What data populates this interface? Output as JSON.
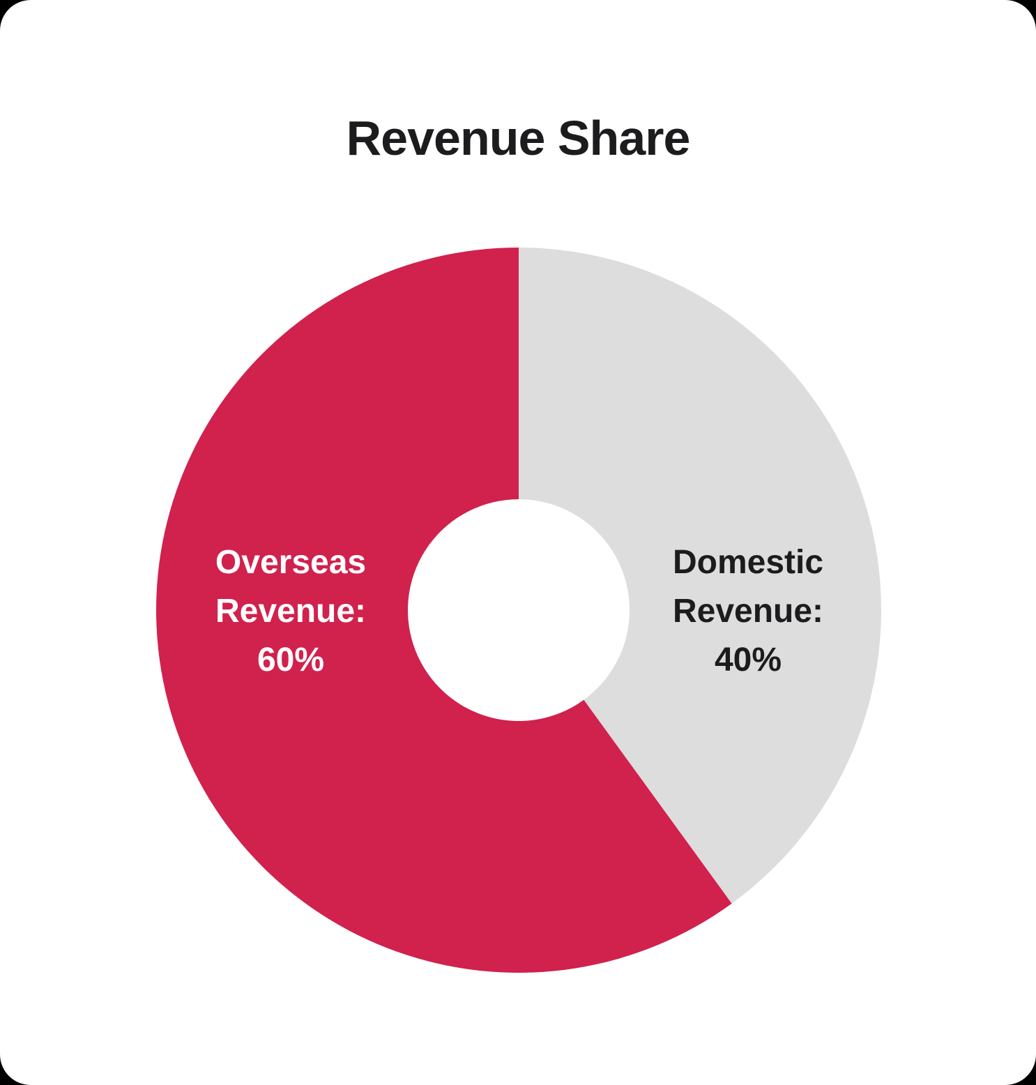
{
  "chart_data": {
    "type": "pie",
    "subtype": "donut",
    "title": "Revenue Share",
    "legend": "none",
    "start_angle": "top",
    "direction": "counterclockwise",
    "inner_radius_ratio": 0.306,
    "background_color": "#ffffff",
    "title_color": "#1c1c1e",
    "segments": [
      {
        "label": "Overseas Revenue",
        "value": 60,
        "unit": "%",
        "display_text": "Overseas Revenue: 60%",
        "color": "#d1214d",
        "text_color": "#ffffff"
      },
      {
        "label": "Domestic Revenue",
        "value": 40,
        "unit": "%",
        "display_text": "Domestic Revenue: 40%",
        "color": "#dddddd",
        "text_color": "#1c1c1e"
      }
    ]
  }
}
